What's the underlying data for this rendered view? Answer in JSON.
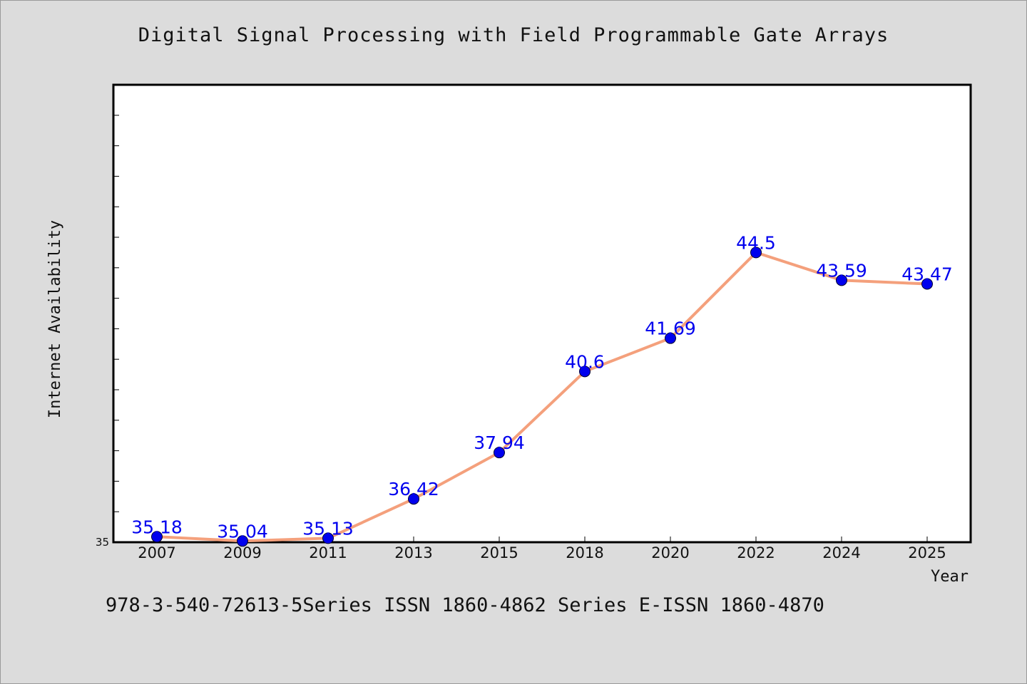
{
  "header": {
    "title": "Digital Signal Processing with Field Programmable Gate Arrays"
  },
  "footer": {
    "text": "978-3-540-72613-5Series ISSN 1860-4862 Series E-ISSN 1860-4870"
  },
  "chart_data": {
    "type": "line",
    "title": "Digital Signal Processing with Field Programmable Gate Arrays",
    "xlabel": "Year",
    "ylabel": "Internet Availability",
    "categories": [
      "2007",
      "2009",
      "2011",
      "2013",
      "2015",
      "2018",
      "2020",
      "2022",
      "2024",
      "2025"
    ],
    "series": [
      {
        "values": [
          35.18,
          35.04,
          35.13,
          36.42,
          37.94,
          40.6,
          41.69,
          44.5,
          43.59,
          43.47
        ],
        "data_labels": [
          "35.18",
          "35.04",
          "35.13",
          "36.42",
          "37.94",
          "40.6",
          "41.69",
          "44.5",
          "43.59",
          "43.47"
        ],
        "line_color": "#f4a07c",
        "marker_color": "#0000ee",
        "label_color": "#0000ee"
      }
    ],
    "ylim": [
      35,
      50
    ],
    "y_tick_labels": [
      "35"
    ],
    "grid": false
  }
}
